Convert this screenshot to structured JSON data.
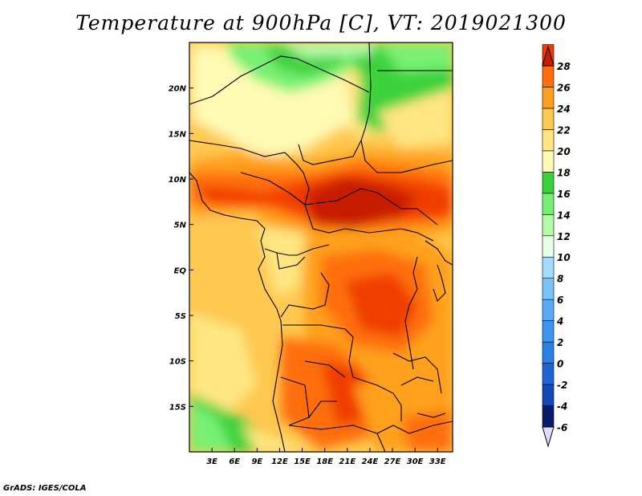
{
  "title": "Temperature at 900hPa [C], VT: 2019021300",
  "footer": "GrADS: IGES/COLA",
  "map": {
    "lon_range": [
      0,
      35
    ],
    "lat_range": [
      -20,
      25
    ],
    "lon_ticks": [
      "3E",
      "6E",
      "9E",
      "12E",
      "15E",
      "18E",
      "21E",
      "24E",
      "27E",
      "30E",
      "33E"
    ],
    "lon_values": [
      3,
      6,
      9,
      12,
      15,
      18,
      21,
      24,
      27,
      30,
      33
    ],
    "lat_ticks": [
      "20N",
      "15N",
      "10N",
      "5N",
      "EQ",
      "5S",
      "10S",
      "15S"
    ],
    "lat_values": [
      20,
      15,
      10,
      5,
      0,
      -5,
      -10,
      -15
    ]
  },
  "colorbar": {
    "levels": [
      "-6",
      "-4",
      "-2",
      "0",
      "2",
      "4",
      "6",
      "8",
      "10",
      "12",
      "14",
      "16",
      "18",
      "20",
      "22",
      "24",
      "26",
      "28"
    ],
    "colors": [
      "#0a1a6b",
      "#1446b4",
      "#1e64d2",
      "#2882e6",
      "#3c96f0",
      "#5aaaf5",
      "#78c3fa",
      "#a0dcff",
      "#e6ffe6",
      "#b4faaa",
      "#78f073",
      "#3cd23c",
      "#fffab4",
      "#ffe682",
      "#ffc850",
      "#ffa01e",
      "#ff6e0a",
      "#f03c00",
      "#c81e00"
    ],
    "units": "C"
  }
}
